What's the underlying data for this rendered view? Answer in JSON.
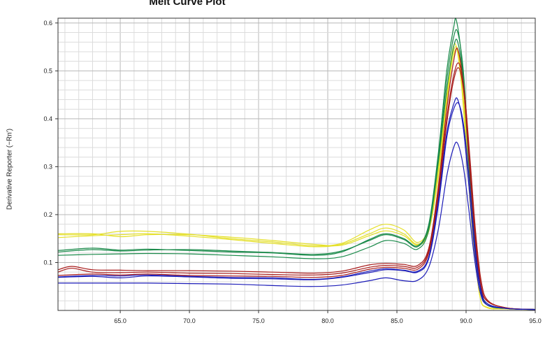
{
  "chart_data": {
    "type": "line",
    "title": "Melt Curve Plot",
    "ylabel": "Derivative Reporter (−Rn')",
    "xlabel": "",
    "xlim": [
      60.5,
      95.0
    ],
    "ylim": [
      0.0,
      0.61
    ],
    "x_ticks": [
      "65.0",
      "70.0",
      "75.0",
      "80.0",
      "85.0",
      "90.0",
      "95.0"
    ],
    "y_ticks": [
      "0.1",
      "0.2",
      "0.3",
      "0.4",
      "0.5",
      "0.6"
    ],
    "grid": true,
    "legend": "none",
    "series": [
      {
        "color": "#e5e02a",
        "points": [
          [
            60.5,
            0.158
          ],
          [
            63,
            0.158
          ],
          [
            65,
            0.165
          ],
          [
            67,
            0.165
          ],
          [
            70,
            0.159
          ],
          [
            73,
            0.15
          ],
          [
            76,
            0.143
          ],
          [
            79,
            0.135
          ],
          [
            81,
            0.14
          ],
          [
            83,
            0.168
          ],
          [
            84.2,
            0.18
          ],
          [
            85.5,
            0.168
          ],
          [
            86.5,
            0.142
          ],
          [
            87.3,
            0.175
          ],
          [
            88,
            0.3
          ],
          [
            88.6,
            0.45
          ],
          [
            89.0,
            0.54
          ],
          [
            89.3,
            0.55
          ],
          [
            89.7,
            0.46
          ],
          [
            90.1,
            0.3
          ],
          [
            90.5,
            0.15
          ],
          [
            91.0,
            0.03
          ],
          [
            91.5,
            0.007
          ],
          [
            93,
            0.003
          ],
          [
            95,
            0.002
          ]
        ]
      },
      {
        "color": "#e5e02a",
        "points": [
          [
            60.5,
            0.152
          ],
          [
            63,
            0.156
          ],
          [
            65,
            0.158
          ],
          [
            67,
            0.16
          ],
          [
            70,
            0.155
          ],
          [
            73,
            0.148
          ],
          [
            76,
            0.14
          ],
          [
            79,
            0.133
          ],
          [
            81,
            0.138
          ],
          [
            83,
            0.16
          ],
          [
            84.2,
            0.172
          ],
          [
            85.5,
            0.16
          ],
          [
            86.5,
            0.138
          ],
          [
            87.3,
            0.17
          ],
          [
            88,
            0.29
          ],
          [
            88.6,
            0.44
          ],
          [
            89.0,
            0.53
          ],
          [
            89.4,
            0.545
          ],
          [
            89.8,
            0.45
          ],
          [
            90.2,
            0.29
          ],
          [
            90.6,
            0.14
          ],
          [
            91.0,
            0.03
          ],
          [
            91.5,
            0.006
          ],
          [
            93,
            0.003
          ],
          [
            95,
            0.002
          ]
        ]
      },
      {
        "color": "#e5e02a",
        "points": [
          [
            60.5,
            0.16
          ],
          [
            63,
            0.16
          ],
          [
            65,
            0.154
          ],
          [
            67,
            0.158
          ],
          [
            70,
            0.158
          ],
          [
            73,
            0.153
          ],
          [
            76,
            0.146
          ],
          [
            79,
            0.138
          ],
          [
            81,
            0.136
          ],
          [
            83,
            0.156
          ],
          [
            84.2,
            0.166
          ],
          [
            85.5,
            0.156
          ],
          [
            86.5,
            0.136
          ],
          [
            87.3,
            0.165
          ],
          [
            88,
            0.28
          ],
          [
            88.6,
            0.43
          ],
          [
            89.0,
            0.52
          ],
          [
            89.4,
            0.54
          ],
          [
            89.8,
            0.44
          ],
          [
            90.2,
            0.28
          ],
          [
            90.6,
            0.13
          ],
          [
            91.0,
            0.03
          ],
          [
            91.5,
            0.006
          ],
          [
            93,
            0.003
          ],
          [
            95,
            0.002
          ]
        ]
      },
      {
        "color": "#1a8a4a",
        "points": [
          [
            60.5,
            0.125
          ],
          [
            63,
            0.13
          ],
          [
            65,
            0.126
          ],
          [
            67,
            0.128
          ],
          [
            70,
            0.125
          ],
          [
            73,
            0.122
          ],
          [
            76,
            0.12
          ],
          [
            79,
            0.115
          ],
          [
            81,
            0.122
          ],
          [
            83,
            0.148
          ],
          [
            84.2,
            0.16
          ],
          [
            85.5,
            0.15
          ],
          [
            86.5,
            0.135
          ],
          [
            87.3,
            0.18
          ],
          [
            88,
            0.33
          ],
          [
            88.6,
            0.5
          ],
          [
            89.1,
            0.59
          ],
          [
            89.3,
            0.605
          ],
          [
            89.7,
            0.52
          ],
          [
            90.1,
            0.35
          ],
          [
            90.5,
            0.18
          ],
          [
            91.0,
            0.05
          ],
          [
            91.5,
            0.012
          ],
          [
            93,
            0.004
          ],
          [
            95,
            0.002
          ]
        ]
      },
      {
        "color": "#1a8a4a",
        "points": [
          [
            60.5,
            0.122
          ],
          [
            63,
            0.127
          ],
          [
            65,
            0.124
          ],
          [
            67,
            0.126
          ],
          [
            70,
            0.127
          ],
          [
            73,
            0.124
          ],
          [
            76,
            0.121
          ],
          [
            79,
            0.117
          ],
          [
            81,
            0.124
          ],
          [
            83,
            0.146
          ],
          [
            84.2,
            0.158
          ],
          [
            85.5,
            0.148
          ],
          [
            86.5,
            0.133
          ],
          [
            87.3,
            0.175
          ],
          [
            88,
            0.32
          ],
          [
            88.6,
            0.48
          ],
          [
            89.1,
            0.57
          ],
          [
            89.4,
            0.58
          ],
          [
            89.8,
            0.5
          ],
          [
            90.2,
            0.33
          ],
          [
            90.6,
            0.16
          ],
          [
            91.0,
            0.05
          ],
          [
            91.5,
            0.012
          ],
          [
            93,
            0.004
          ],
          [
            95,
            0.002
          ]
        ]
      },
      {
        "color": "#1a8a4a",
        "points": [
          [
            60.5,
            0.115
          ],
          [
            63,
            0.117
          ],
          [
            65,
            0.118
          ],
          [
            67,
            0.119
          ],
          [
            70,
            0.118
          ],
          [
            73,
            0.115
          ],
          [
            76,
            0.112
          ],
          [
            79,
            0.108
          ],
          [
            81,
            0.112
          ],
          [
            83,
            0.132
          ],
          [
            84.2,
            0.146
          ],
          [
            85.5,
            0.14
          ],
          [
            86.5,
            0.128
          ],
          [
            87.3,
            0.168
          ],
          [
            88,
            0.31
          ],
          [
            88.6,
            0.46
          ],
          [
            89.1,
            0.55
          ],
          [
            89.4,
            0.56
          ],
          [
            89.8,
            0.48
          ],
          [
            90.2,
            0.32
          ],
          [
            90.6,
            0.16
          ],
          [
            91.0,
            0.05
          ],
          [
            91.5,
            0.012
          ],
          [
            93,
            0.004
          ],
          [
            95,
            0.002
          ]
        ]
      },
      {
        "color": "#a81c1c",
        "points": [
          [
            60.5,
            0.085
          ],
          [
            61.5,
            0.092
          ],
          [
            63,
            0.085
          ],
          [
            65,
            0.084
          ],
          [
            67,
            0.083
          ],
          [
            70,
            0.083
          ],
          [
            73,
            0.082
          ],
          [
            76,
            0.08
          ],
          [
            79,
            0.078
          ],
          [
            81,
            0.082
          ],
          [
            83,
            0.095
          ],
          [
            84.2,
            0.098
          ],
          [
            85.5,
            0.096
          ],
          [
            86.5,
            0.094
          ],
          [
            87.3,
            0.13
          ],
          [
            88,
            0.26
          ],
          [
            88.6,
            0.42
          ],
          [
            89.1,
            0.52
          ],
          [
            89.4,
            0.545
          ],
          [
            89.8,
            0.47
          ],
          [
            90.2,
            0.32
          ],
          [
            90.6,
            0.17
          ],
          [
            91.0,
            0.06
          ],
          [
            91.5,
            0.02
          ],
          [
            93,
            0.005
          ],
          [
            95,
            0.002
          ]
        ]
      },
      {
        "color": "#a81c1c",
        "points": [
          [
            60.5,
            0.08
          ],
          [
            61.5,
            0.088
          ],
          [
            63,
            0.08
          ],
          [
            65,
            0.079
          ],
          [
            67,
            0.08
          ],
          [
            70,
            0.078
          ],
          [
            73,
            0.077
          ],
          [
            76,
            0.075
          ],
          [
            79,
            0.074
          ],
          [
            81,
            0.078
          ],
          [
            83,
            0.09
          ],
          [
            84.2,
            0.094
          ],
          [
            85.5,
            0.092
          ],
          [
            86.5,
            0.09
          ],
          [
            87.3,
            0.125
          ],
          [
            88,
            0.25
          ],
          [
            88.6,
            0.4
          ],
          [
            89.1,
            0.49
          ],
          [
            89.5,
            0.515
          ],
          [
            89.9,
            0.45
          ],
          [
            90.3,
            0.31
          ],
          [
            90.7,
            0.16
          ],
          [
            91.1,
            0.06
          ],
          [
            91.6,
            0.02
          ],
          [
            93,
            0.005
          ],
          [
            95,
            0.002
          ]
        ]
      },
      {
        "color": "#a81c1c",
        "points": [
          [
            60.5,
            0.073
          ],
          [
            63,
            0.076
          ],
          [
            65,
            0.074
          ],
          [
            67,
            0.076
          ],
          [
            70,
            0.073
          ],
          [
            73,
            0.072
          ],
          [
            76,
            0.071
          ],
          [
            79,
            0.069
          ],
          [
            81,
            0.073
          ],
          [
            83,
            0.086
          ],
          [
            84.2,
            0.09
          ],
          [
            85.5,
            0.088
          ],
          [
            86.5,
            0.086
          ],
          [
            87.3,
            0.12
          ],
          [
            88,
            0.24
          ],
          [
            88.6,
            0.39
          ],
          [
            89.1,
            0.48
          ],
          [
            89.5,
            0.505
          ],
          [
            89.9,
            0.44
          ],
          [
            90.3,
            0.3
          ],
          [
            90.7,
            0.15
          ],
          [
            91.1,
            0.05
          ],
          [
            91.6,
            0.018
          ],
          [
            93,
            0.005
          ],
          [
            95,
            0.002
          ]
        ]
      },
      {
        "color": "#1c1cb8",
        "points": [
          [
            60.5,
            0.07
          ],
          [
            63,
            0.073
          ],
          [
            65,
            0.072
          ],
          [
            67,
            0.074
          ],
          [
            70,
            0.071
          ],
          [
            73,
            0.069
          ],
          [
            76,
            0.068
          ],
          [
            79,
            0.065
          ],
          [
            81,
            0.07
          ],
          [
            83,
            0.082
          ],
          [
            84.2,
            0.087
          ],
          [
            85.5,
            0.084
          ],
          [
            86.5,
            0.082
          ],
          [
            87.3,
            0.112
          ],
          [
            88,
            0.23
          ],
          [
            88.6,
            0.37
          ],
          [
            89.1,
            0.43
          ],
          [
            89.4,
            0.44
          ],
          [
            89.8,
            0.38
          ],
          [
            90.2,
            0.26
          ],
          [
            90.6,
            0.13
          ],
          [
            91.0,
            0.05
          ],
          [
            91.5,
            0.015
          ],
          [
            93,
            0.004
          ],
          [
            95,
            0.002
          ]
        ]
      },
      {
        "color": "#1c1cb8",
        "points": [
          [
            60.5,
            0.069
          ],
          [
            63,
            0.071
          ],
          [
            65,
            0.068
          ],
          [
            67,
            0.072
          ],
          [
            70,
            0.07
          ],
          [
            73,
            0.067
          ],
          [
            76,
            0.066
          ],
          [
            79,
            0.064
          ],
          [
            81,
            0.069
          ],
          [
            83,
            0.079
          ],
          [
            84.2,
            0.085
          ],
          [
            85.5,
            0.083
          ],
          [
            86.5,
            0.08
          ],
          [
            87.3,
            0.108
          ],
          [
            88,
            0.22
          ],
          [
            88.6,
            0.36
          ],
          [
            89.1,
            0.42
          ],
          [
            89.5,
            0.43
          ],
          [
            89.9,
            0.37
          ],
          [
            90.3,
            0.25
          ],
          [
            90.7,
            0.12
          ],
          [
            91.1,
            0.04
          ],
          [
            91.6,
            0.013
          ],
          [
            93,
            0.004
          ],
          [
            95,
            0.002
          ]
        ]
      },
      {
        "color": "#1c1cb8",
        "points": [
          [
            60.5,
            0.057
          ],
          [
            63,
            0.057
          ],
          [
            65,
            0.057
          ],
          [
            67,
            0.057
          ],
          [
            70,
            0.056
          ],
          [
            73,
            0.055
          ],
          [
            76,
            0.052
          ],
          [
            79,
            0.05
          ],
          [
            81,
            0.053
          ],
          [
            83,
            0.062
          ],
          [
            84.2,
            0.068
          ],
          [
            85.5,
            0.062
          ],
          [
            86.5,
            0.063
          ],
          [
            87.3,
            0.09
          ],
          [
            88,
            0.17
          ],
          [
            88.6,
            0.28
          ],
          [
            89.1,
            0.34
          ],
          [
            89.4,
            0.348
          ],
          [
            89.8,
            0.3
          ],
          [
            90.2,
            0.21
          ],
          [
            90.6,
            0.11
          ],
          [
            91.0,
            0.04
          ],
          [
            91.5,
            0.012
          ],
          [
            93,
            0.004
          ],
          [
            95,
            0.002
          ]
        ]
      }
    ]
  }
}
